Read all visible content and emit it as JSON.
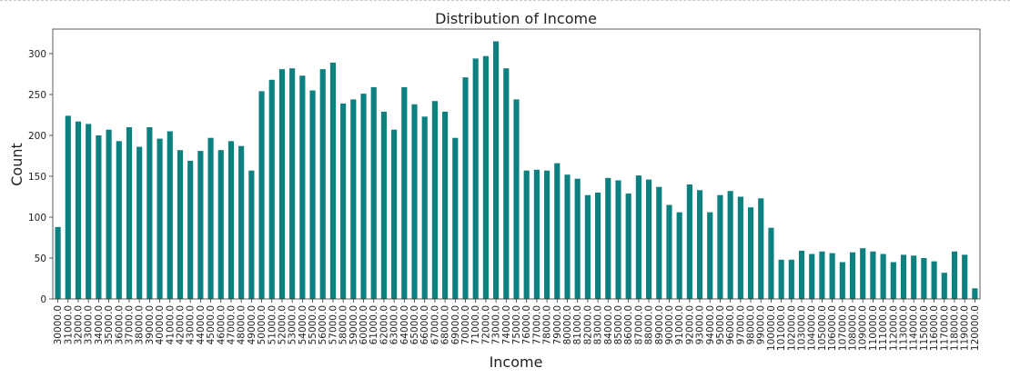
{
  "chart_data": {
    "type": "bar",
    "title": "Distribution of Income",
    "xlabel": "Income",
    "ylabel": "Count",
    "ylim": [
      0,
      330
    ],
    "yticks": [
      0,
      50,
      100,
      150,
      200,
      250,
      300
    ],
    "ytick_labels": [
      "0",
      "50",
      "100",
      "150",
      "200",
      "250",
      "300"
    ],
    "color": "#0e8080",
    "grid": false,
    "categories": [
      "30000.0",
      "31000.0",
      "32000.0",
      "33000.0",
      "34000.0",
      "35000.0",
      "36000.0",
      "37000.0",
      "38000.0",
      "39000.0",
      "40000.0",
      "41000.0",
      "42000.0",
      "43000.0",
      "44000.0",
      "45000.0",
      "46000.0",
      "47000.0",
      "48000.0",
      "49000.0",
      "50000.0",
      "51000.0",
      "52000.0",
      "53000.0",
      "54000.0",
      "55000.0",
      "56000.0",
      "57000.0",
      "58000.0",
      "59000.0",
      "60000.0",
      "61000.0",
      "62000.0",
      "63000.0",
      "64000.0",
      "65000.0",
      "66000.0",
      "67000.0",
      "68000.0",
      "69000.0",
      "70000.0",
      "71000.0",
      "72000.0",
      "73000.0",
      "74000.0",
      "75000.0",
      "76000.0",
      "77000.0",
      "78000.0",
      "79000.0",
      "80000.0",
      "81000.0",
      "82000.0",
      "83000.0",
      "84000.0",
      "85000.0",
      "86000.0",
      "87000.0",
      "88000.0",
      "89000.0",
      "90000.0",
      "91000.0",
      "92000.0",
      "93000.0",
      "94000.0",
      "95000.0",
      "96000.0",
      "97000.0",
      "98000.0",
      "99000.0",
      "100000.0",
      "101000.0",
      "102000.0",
      "103000.0",
      "104000.0",
      "105000.0",
      "106000.0",
      "107000.0",
      "108000.0",
      "109000.0",
      "110000.0",
      "111000.0",
      "112000.0",
      "113000.0",
      "114000.0",
      "115000.0",
      "116000.0",
      "117000.0",
      "118000.0",
      "119000.0",
      "120000.0"
    ],
    "values": [
      88,
      224,
      217,
      214,
      200,
      207,
      193,
      210,
      186,
      210,
      196,
      205,
      182,
      169,
      181,
      197,
      182,
      193,
      187,
      157,
      254,
      268,
      281,
      282,
      273,
      255,
      281,
      289,
      239,
      244,
      251,
      259,
      229,
      207,
      259,
      238,
      223,
      242,
      229,
      197,
      271,
      294,
      297,
      315,
      282,
      244,
      157,
      158,
      157,
      166,
      152,
      147,
      127,
      130,
      148,
      145,
      129,
      151,
      146,
      137,
      115,
      106,
      140,
      133,
      106,
      127,
      132,
      125,
      112,
      123,
      87,
      48,
      48,
      59,
      55,
      58,
      56,
      45,
      57,
      62,
      58,
      55,
      45,
      54,
      53,
      50,
      46,
      32,
      58,
      54,
      13
    ]
  }
}
